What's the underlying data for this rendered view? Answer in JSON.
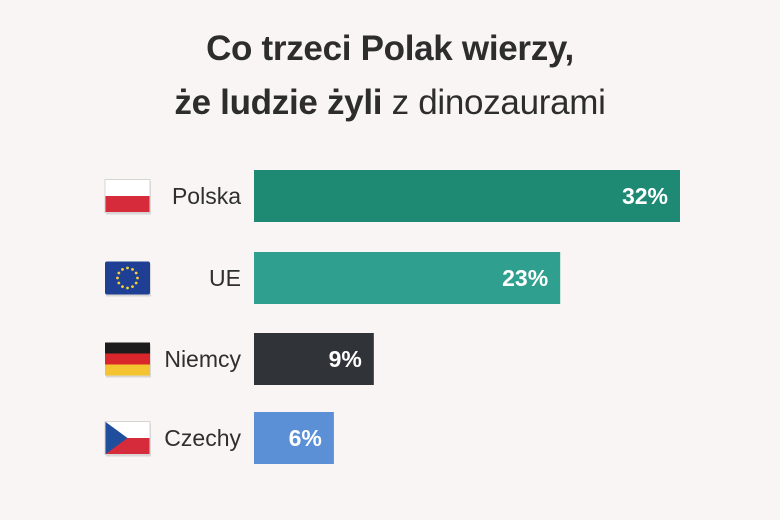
{
  "title": {
    "line1": "Co trzeci Polak wierzy,",
    "line2_bold": "że ludzie żyli",
    "line2_light": " z dinozaurami"
  },
  "chart_data": {
    "type": "bar",
    "orientation": "horizontal",
    "categories": [
      "Polska",
      "UE",
      "Niemcy",
      "Czechy"
    ],
    "values": [
      32,
      23,
      9,
      6
    ],
    "value_labels": [
      "32%",
      "23%",
      "9%",
      "6%"
    ],
    "unit": "%",
    "bar_colors": [
      "#1e8a74",
      "#2f9f8f",
      "#303438",
      "#5b8fd6"
    ],
    "flag_icons": [
      "flag-poland-icon",
      "flag-eu-icon",
      "flag-germany-icon",
      "flag-czechia-icon"
    ],
    "grid": false,
    "legend": "none"
  }
}
